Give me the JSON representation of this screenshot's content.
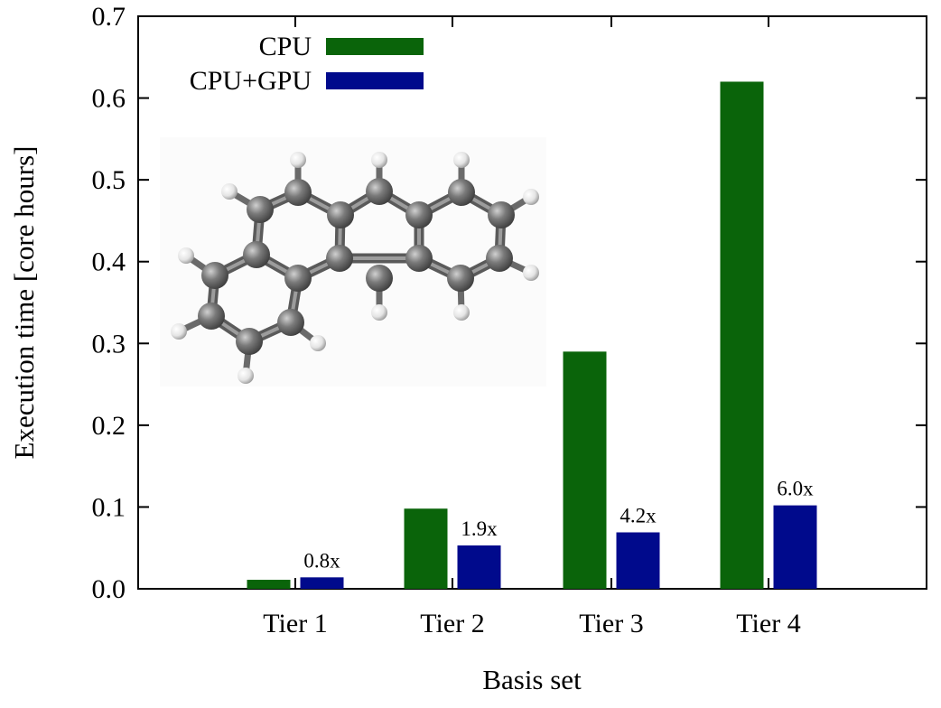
{
  "chart_data": {
    "type": "bar",
    "title": "",
    "xlabel": "Basis set",
    "ylabel": "Execution time [core hours]",
    "categories": [
      "Tier 1",
      "Tier 2",
      "Tier 3",
      "Tier 4"
    ],
    "series": [
      {
        "name": "CPU",
        "color": "#0a640a",
        "values": [
          0.011,
          0.098,
          0.29,
          0.62
        ]
      },
      {
        "name": "CPU+GPU",
        "color": "#000a8c",
        "values": [
          0.014,
          0.053,
          0.069,
          0.102
        ]
      }
    ],
    "annotations": [
      "0.8x",
      "1.9x",
      "4.2x",
      "6.0x"
    ],
    "ylim": [
      0,
      0.7
    ],
    "yticks": [
      "0.0",
      "0.1",
      "0.2",
      "0.3",
      "0.4",
      "0.5",
      "0.6",
      "0.7"
    ],
    "legend_position": "top-left",
    "grid": false,
    "inset_image": "chrysene-molecule-ball-and-stick"
  }
}
